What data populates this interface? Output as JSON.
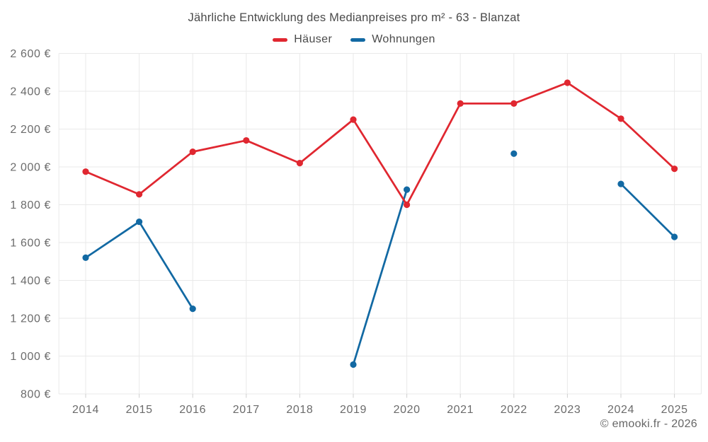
{
  "title": "Jährliche Entwicklung des Medianpreises pro m² - 63 - Blanzat",
  "footer": "© emooki.fr - 2026",
  "colors": {
    "haeuser": "#e02730",
    "wohnungen": "#1269a3",
    "grid": "#e9e9e9",
    "tick": "#cfcfcf",
    "axis_text": "#6b6b6b",
    "title_text": "#4a4a4a"
  },
  "chart_data": {
    "type": "line",
    "title": "Jährliche Entwicklung des Medianpreises pro m² - 63 - Blanzat",
    "x": [
      2014,
      2015,
      2016,
      2017,
      2018,
      2019,
      2020,
      2021,
      2022,
      2023,
      2024,
      2025
    ],
    "series": [
      {
        "name": "Häuser",
        "color_key": "haeuser",
        "values": [
          1975,
          1855,
          2080,
          2140,
          2020,
          2250,
          1800,
          2335,
          2335,
          2445,
          2255,
          1990
        ]
      },
      {
        "name": "Wohnungen",
        "color_key": "wohnungen",
        "values": [
          1520,
          1710,
          1250,
          null,
          null,
          955,
          1880,
          null,
          2070,
          null,
          1910,
          1630
        ]
      }
    ],
    "ylim": [
      800,
      2600
    ],
    "yticks": [
      800,
      1000,
      1200,
      1400,
      1600,
      1800,
      2000,
      2200,
      2400,
      2600
    ],
    "ytick_labels": [
      "800 €",
      "1 000 €",
      "1 200 €",
      "1 400 €",
      "1 600 €",
      "1 800 €",
      "2 000 €",
      "2 200 €",
      "2 400 €",
      "2 600 €"
    ],
    "xlabel": "",
    "ylabel": "",
    "grid": true,
    "legend_position": "top"
  }
}
